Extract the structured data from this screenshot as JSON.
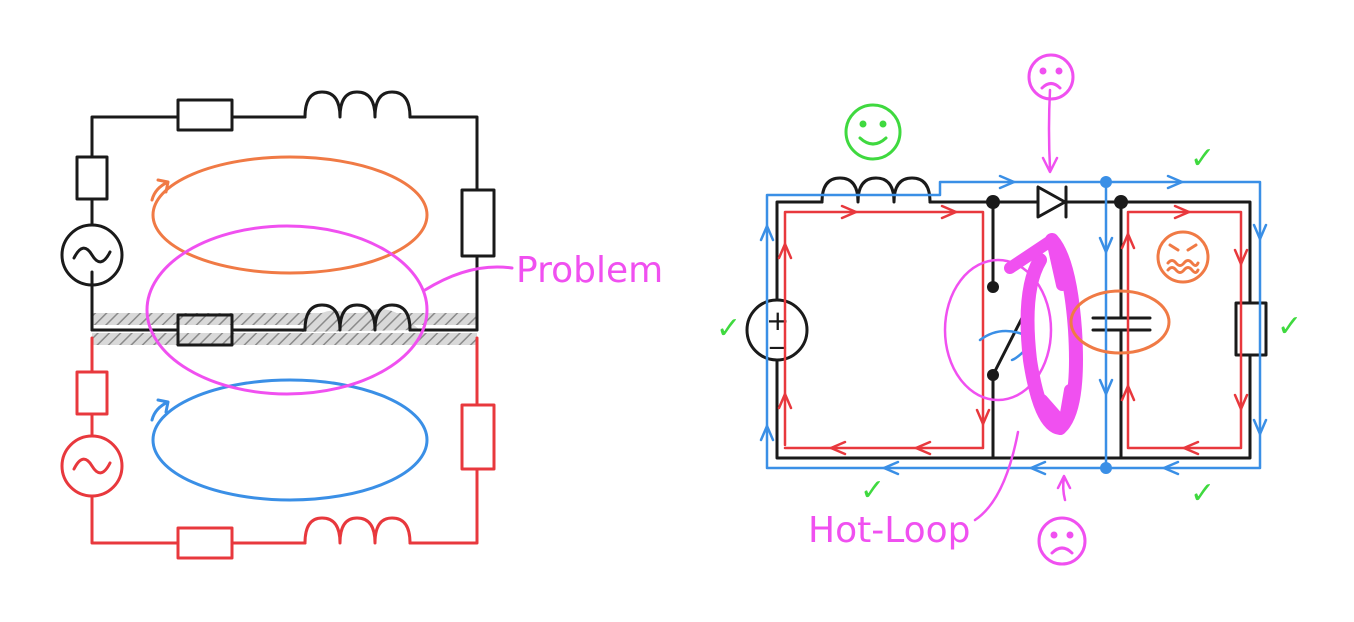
{
  "colors": {
    "black": "#1a1a1a",
    "red": "#e8383d",
    "blue": "#3a8fe6",
    "orange": "#f07a45",
    "magenta": "#f050f0",
    "green": "#3fd93f",
    "hatch": "#9a9a9a"
  },
  "labels": {
    "problem": "Problem",
    "hot_loop": "Hot-Loop"
  },
  "symbols": {
    "check": "✓",
    "plus": "+",
    "minus": "−"
  },
  "faces": {
    "happy_icon": "smiley-face-icon",
    "sad_icon": "sad-face-icon",
    "angry_icon": "distressed-face-icon"
  }
}
